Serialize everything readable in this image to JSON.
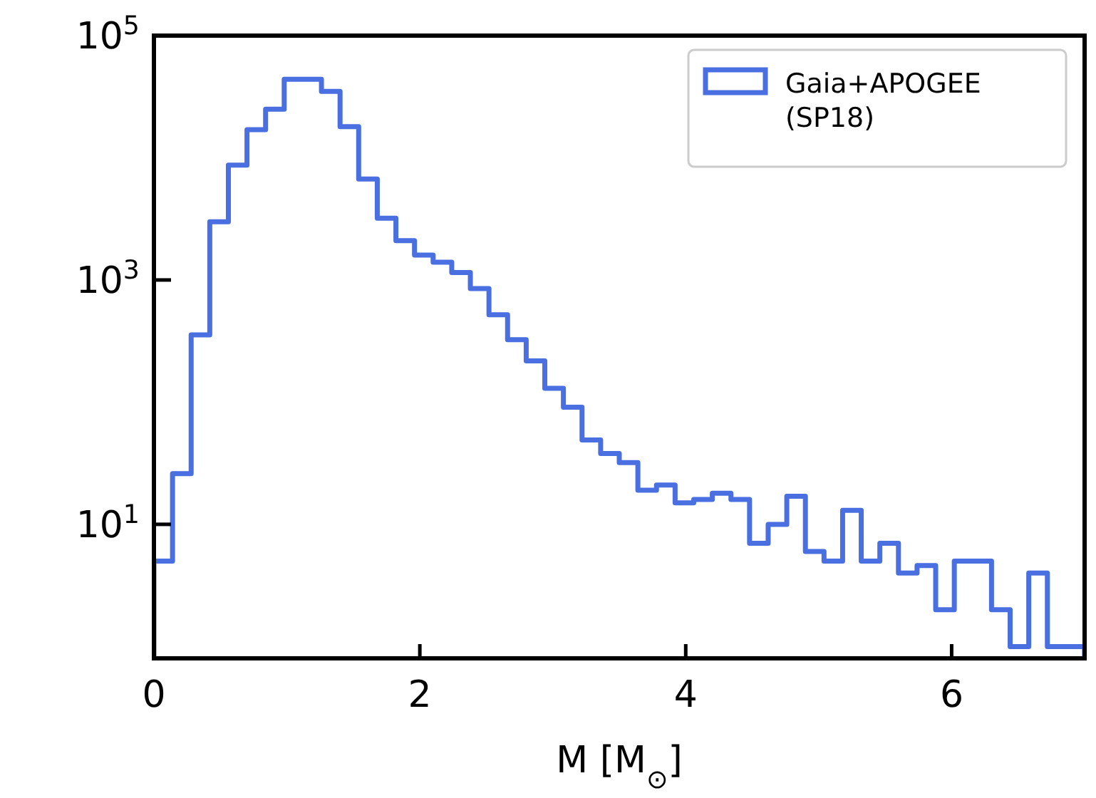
{
  "chart_data": {
    "type": "histogram",
    "xlabel": "M [M$_{⊙}$]",
    "bins": [
      0,
      0.14,
      0.28,
      0.42,
      0.56,
      0.7,
      0.84,
      0.98,
      1.12,
      1.26,
      1.4,
      1.54,
      1.68,
      1.82,
      1.96,
      2.1,
      2.24,
      2.38,
      2.52,
      2.66,
      2.8,
      2.94,
      3.08,
      3.22,
      3.36,
      3.5,
      3.64,
      3.78,
      3.92,
      4.06,
      4.2,
      4.34,
      4.48,
      4.62,
      4.76,
      4.9,
      5.04,
      5.18,
      5.32,
      5.46,
      5.6,
      5.74,
      5.88,
      6.02,
      6.16,
      6.3,
      6.44,
      6.58,
      6.72,
      6.86,
      7
    ],
    "series": [
      {
        "name": "Gaia+APOGEE\n(SP18)",
        "color": "#4a6fe0",
        "values": [
          5,
          26,
          355,
          3000,
          8700,
          17000,
          25000,
          44000,
          44000,
          35000,
          18000,
          6700,
          3200,
          2100,
          1600,
          1400,
          1150,
          850,
          520,
          325,
          218,
          130,
          91,
          49,
          38,
          32,
          19,
          21,
          15,
          16,
          18,
          16,
          7,
          10,
          17,
          6,
          5,
          13,
          5,
          7,
          4,
          4.6,
          2,
          5,
          5,
          2,
          1,
          4,
          1,
          1
        ]
      }
    ],
    "xlim": [
      0,
      7
    ],
    "xticks": [
      0,
      2,
      4,
      6
    ],
    "ylim": [
      0.8,
      100000
    ],
    "log": true,
    "yticks": [
      {
        "value": 10,
        "label": "10$^{1}$"
      },
      {
        "value": 1000,
        "label": "10$^{3}$"
      },
      {
        "value": 100000,
        "label": "10$^{5}$"
      }
    ],
    "legend": "top right"
  }
}
